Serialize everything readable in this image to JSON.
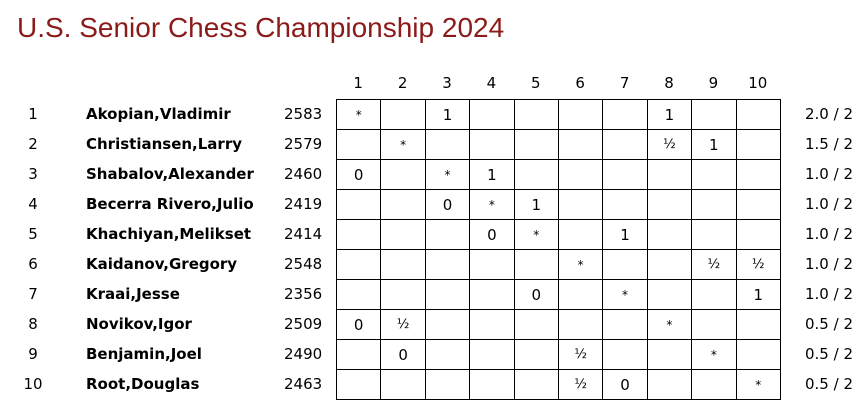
{
  "title": "U.S. Senior Chess Championship 2024",
  "columns": [
    "1",
    "2",
    "3",
    "4",
    "5",
    "6",
    "7",
    "8",
    "9",
    "10"
  ],
  "players": [
    {
      "rank": "1",
      "name": "Akopian,Vladimir",
      "rating": "2583",
      "results": [
        "*",
        "",
        "1",
        "",
        "",
        "",
        "",
        "1",
        "",
        ""
      ],
      "score": "2.0 / 2"
    },
    {
      "rank": "2",
      "name": "Christiansen,Larry",
      "rating": "2579",
      "results": [
        "",
        "*",
        "",
        "",
        "",
        "",
        "",
        "½",
        "1",
        ""
      ],
      "score": "1.5 / 2"
    },
    {
      "rank": "3",
      "name": "Shabalov,Alexander",
      "rating": "2460",
      "results": [
        "0",
        "",
        "*",
        "1",
        "",
        "",
        "",
        "",
        "",
        ""
      ],
      "score": "1.0 / 2"
    },
    {
      "rank": "4",
      "name": "Becerra Rivero,Julio",
      "rating": "2419",
      "results": [
        "",
        "",
        "0",
        "*",
        "1",
        "",
        "",
        "",
        "",
        ""
      ],
      "score": "1.0 / 2"
    },
    {
      "rank": "5",
      "name": "Khachiyan,Melikset",
      "rating": "2414",
      "results": [
        "",
        "",
        "",
        "0",
        "*",
        "",
        "1",
        "",
        "",
        ""
      ],
      "score": "1.0 / 2"
    },
    {
      "rank": "6",
      "name": "Kaidanov,Gregory",
      "rating": "2548",
      "results": [
        "",
        "",
        "",
        "",
        "",
        "*",
        "",
        "",
        "½",
        "½"
      ],
      "score": "1.0 / 2"
    },
    {
      "rank": "7",
      "name": "Kraai,Jesse",
      "rating": "2356",
      "results": [
        "",
        "",
        "",
        "",
        "0",
        "",
        "*",
        "",
        "",
        "1"
      ],
      "score": "1.0 / 2"
    },
    {
      "rank": "8",
      "name": "Novikov,Igor",
      "rating": "2509",
      "results": [
        "0",
        "½",
        "",
        "",
        "",
        "",
        "",
        "*",
        "",
        ""
      ],
      "score": "0.5 / 2"
    },
    {
      "rank": "9",
      "name": "Benjamin,Joel",
      "rating": "2490",
      "results": [
        "",
        "0",
        "",
        "",
        "",
        "½",
        "",
        "",
        "*",
        ""
      ],
      "score": "0.5 / 2"
    },
    {
      "rank": "10",
      "name": "Root,Douglas",
      "rating": "2463",
      "results": [
        "",
        "",
        "",
        "",
        "",
        "½",
        "0",
        "",
        "",
        "*"
      ],
      "score": "0.5 / 2"
    }
  ],
  "colors": {
    "title": "#8b1a1a"
  }
}
